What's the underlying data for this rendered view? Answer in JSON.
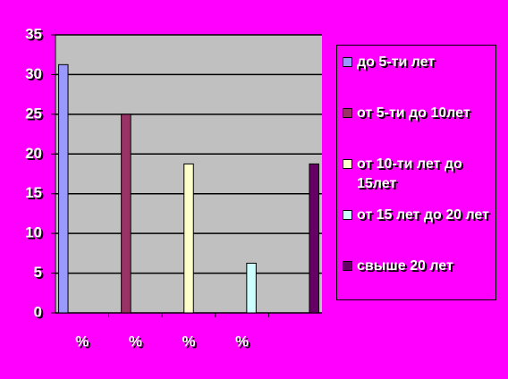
{
  "chart_data": {
    "type": "bar",
    "categories": [
      "%",
      "%",
      "%",
      "%",
      null
    ],
    "series": [
      {
        "name": "до 5-ти лет",
        "color": "#9999ff",
        "values": [
          31.25,
          null,
          null,
          null,
          null
        ]
      },
      {
        "name": "от 5-ти до 10лет",
        "color": "#993366",
        "values": [
          null,
          25,
          null,
          null,
          null
        ]
      },
      {
        "name": "от 10-ти лет до 15лет",
        "color": "#ffffcc",
        "values": [
          null,
          null,
          18.75,
          null,
          null
        ]
      },
      {
        "name": "от 15 лет до 20 лет",
        "color": "#ccffff",
        "values": [
          null,
          null,
          null,
          6.25,
          null
        ]
      },
      {
        "name": "свыше 20 лет",
        "color": "#660066",
        "values": [
          null,
          null,
          null,
          null,
          18.75
        ]
      }
    ],
    "ylim": [
      0,
      35
    ],
    "yticks": [
      0,
      5,
      10,
      15,
      20,
      25,
      30,
      35
    ],
    "grid": true,
    "legend": "right"
  }
}
